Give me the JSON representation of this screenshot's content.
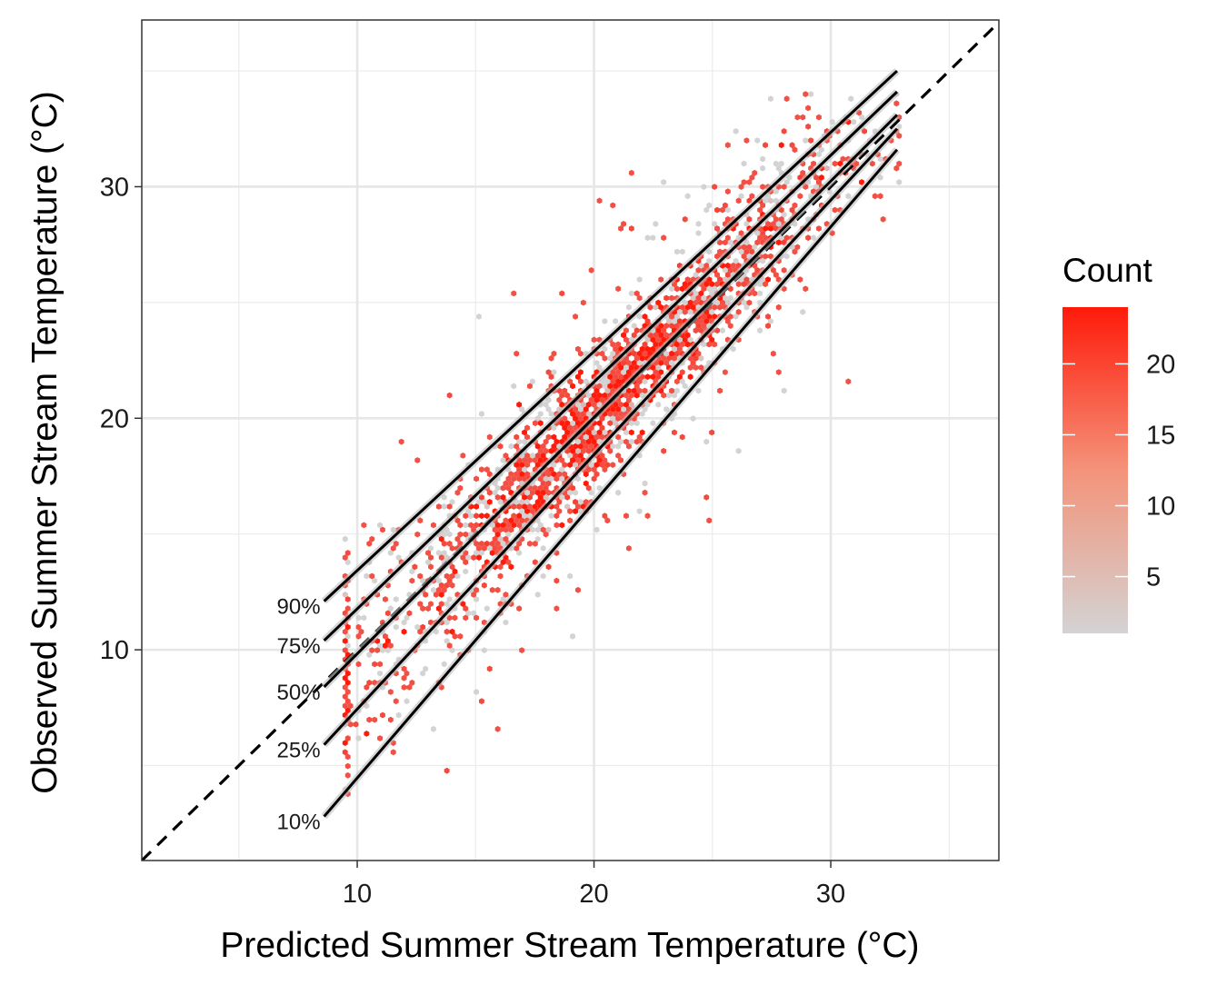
{
  "chart_data": {
    "type": "hexbin-scatter",
    "xlabel": "Predicted Summer Stream Temperature (°C)",
    "ylabel": "Observed Summer Stream Temperature (°C)",
    "xlim": [
      0.9,
      37.1
    ],
    "ylim": [
      0.9,
      37.2
    ],
    "x_ticks": [
      10,
      20,
      30
    ],
    "y_ticks": [
      10,
      20,
      30
    ],
    "grid": true,
    "identity_line": {
      "style": "dashed",
      "slope": 1,
      "intercept": 0
    },
    "quantile_lines": [
      {
        "label": "90%",
        "x": [
          8.6,
          32.8
        ],
        "y": [
          12.1,
          35.0
        ]
      },
      {
        "label": "75%",
        "x": [
          8.6,
          32.8
        ],
        "y": [
          10.4,
          34.1
        ]
      },
      {
        "label": "50%",
        "x": [
          8.6,
          32.8
        ],
        "y": [
          8.4,
          33.1
        ]
      },
      {
        "label": "25%",
        "x": [
          8.6,
          32.8
        ],
        "y": [
          5.9,
          32.5
        ]
      },
      {
        "label": "10%",
        "x": [
          8.6,
          32.8
        ],
        "y": [
          2.8,
          31.6
        ]
      }
    ],
    "legend": {
      "title": "Count",
      "position": "right",
      "ticks": [
        5,
        10,
        15,
        20
      ],
      "range": [
        1,
        24
      ],
      "colors": {
        "low": "#d3d3d3",
        "high": "#ff1a0a"
      }
    }
  }
}
